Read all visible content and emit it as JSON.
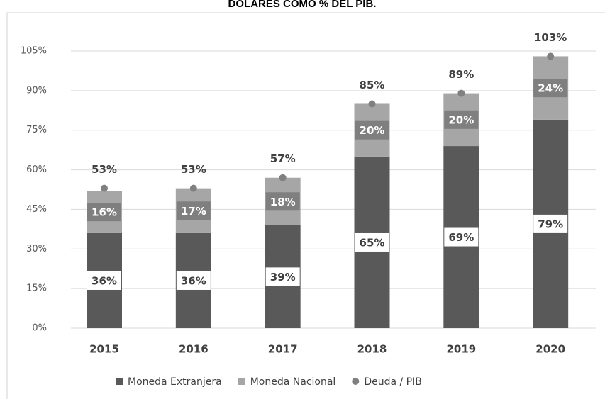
{
  "chart_data": {
    "type": "bar",
    "title": "DOLARES COMO % DEL PIB.",
    "categories": [
      "2015",
      "2016",
      "2017",
      "2018",
      "2019",
      "2020"
    ],
    "series": [
      {
        "name": "Moneda Extranjera",
        "color": "#595959",
        "kind": "bar",
        "values": [
          36,
          36,
          39,
          65,
          69,
          79
        ],
        "value_labels": [
          "36%",
          "36%",
          "39%",
          "65%",
          "69%",
          "79%"
        ]
      },
      {
        "name": "Moneda Nacional",
        "color": "#a6a6a6",
        "kind": "bar",
        "values": [
          16,
          17,
          18,
          20,
          20,
          24
        ],
        "value_labels": [
          "16%",
          "17%",
          "18%",
          "20%",
          "20%",
          "24%"
        ]
      },
      {
        "name": "Deuda / PIB",
        "color": "#808080",
        "kind": "point",
        "values": [
          53,
          53,
          57,
          85,
          89,
          103
        ],
        "value_labels": [
          "53%",
          "53%",
          "57%",
          "85%",
          "89%",
          "103%"
        ]
      }
    ],
    "ylim": [
      0,
      105
    ],
    "yticks": [
      {
        "value": 0,
        "label": "0%"
      },
      {
        "value": 15,
        "label": "15%"
      },
      {
        "value": 30,
        "label": "30%"
      },
      {
        "value": 45,
        "label": "45%"
      },
      {
        "value": 60,
        "label": "60%"
      },
      {
        "value": 75,
        "label": "75%"
      },
      {
        "value": 90,
        "label": "90%"
      },
      {
        "value": 105,
        "label": "105%"
      }
    ],
    "grid": true,
    "legend": "bottom"
  }
}
